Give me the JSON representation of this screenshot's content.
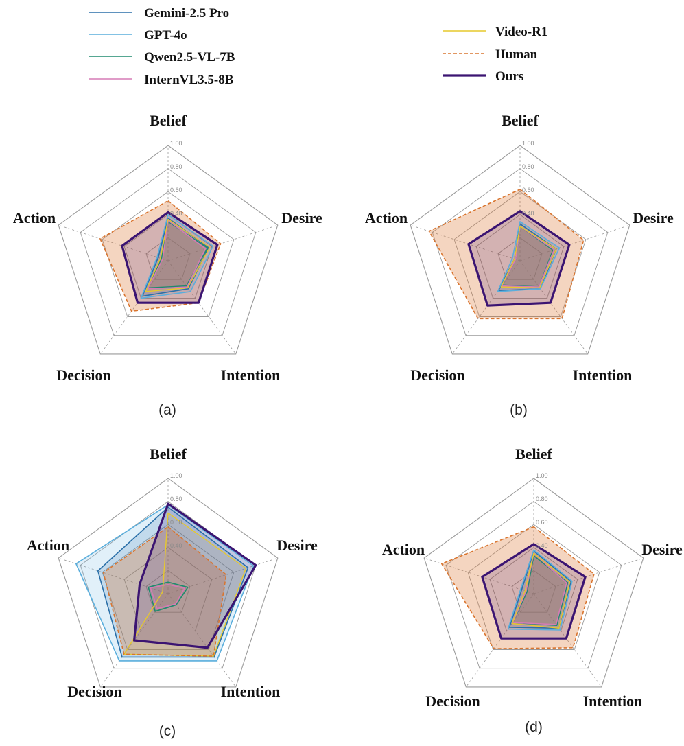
{
  "chart_data": {
    "type": "radar",
    "axes": [
      "Belief",
      "Desire",
      "Intention",
      "Decision",
      "Action"
    ],
    "ticks": [
      "0.40",
      "0.60",
      "0.80",
      "1.00"
    ],
    "rlim": [
      0,
      1
    ],
    "series_styles": [
      {
        "name": "Gemini-2.5 Pro",
        "color": "#2a6fa8",
        "dash": "solid",
        "width": 1.6,
        "fill_opacity": 0.18
      },
      {
        "name": "GPT-4o",
        "color": "#5aaedc",
        "dash": "solid",
        "width": 1.6,
        "fill_opacity": 0.18
      },
      {
        "name": "Qwen2.5-VL-7B",
        "color": "#1e8a6e",
        "dash": "solid",
        "width": 1.6,
        "fill_opacity": 0.18
      },
      {
        "name": "InternVL3.5-8B",
        "color": "#d67bb5",
        "dash": "solid",
        "width": 1.6,
        "fill_opacity": 0.18
      },
      {
        "name": "Video-R1",
        "color": "#e6c82c",
        "dash": "solid",
        "width": 1.4,
        "fill_opacity": 0.12
      },
      {
        "name": "Human",
        "color": "#d9752f",
        "dash": "dashed",
        "width": 1.6,
        "fill_opacity": 0.3
      },
      {
        "name": "Ours",
        "color": "#3b1472",
        "dash": "solid",
        "width": 3.2,
        "fill_opacity": 0.18
      }
    ],
    "panels": [
      {
        "label": "(a)",
        "series": [
          {
            "name": "Gemini-2.5 Pro",
            "values": [
              0.37,
              0.37,
              0.3,
              0.38,
              0.09
            ]
          },
          {
            "name": "GPT-4o",
            "values": [
              0.4,
              0.41,
              0.33,
              0.4,
              0.1
            ]
          },
          {
            "name": "Qwen2.5-VL-7B",
            "values": [
              0.34,
              0.36,
              0.27,
              0.29,
              0.06
            ]
          },
          {
            "name": "InternVL3.5-8B",
            "values": [
              0.35,
              0.34,
              0.28,
              0.3,
              0.05
            ]
          },
          {
            "name": "Video-R1",
            "values": [
              0.36,
              0.38,
              0.29,
              0.33,
              0.07
            ]
          },
          {
            "name": "Human",
            "values": [
              0.52,
              0.48,
              0.45,
              0.54,
              0.62
            ]
          },
          {
            "name": "Ours",
            "values": [
              0.42,
              0.45,
              0.45,
              0.45,
              0.42
            ]
          }
        ]
      },
      {
        "label": "(b)",
        "series": [
          {
            "name": "Gemini-2.5 Pro",
            "values": [
              0.32,
              0.33,
              0.3,
              0.32,
              0.05
            ]
          },
          {
            "name": "GPT-4o",
            "values": [
              0.34,
              0.36,
              0.3,
              0.33,
              0.07
            ]
          },
          {
            "name": "Qwen2.5-VL-7B",
            "values": [
              0.3,
              0.3,
              0.28,
              0.26,
              0.04
            ]
          },
          {
            "name": "InternVL3.5-8B",
            "values": [
              0.3,
              0.31,
              0.28,
              0.27,
              0.04
            ]
          },
          {
            "name": "Video-R1",
            "values": [
              0.3,
              0.33,
              0.29,
              0.28,
              0.05
            ]
          },
          {
            "name": "Human",
            "values": [
              0.62,
              0.58,
              0.62,
              0.62,
              0.83
            ]
          },
          {
            "name": "Ours",
            "values": [
              0.43,
              0.45,
              0.45,
              0.48,
              0.47
            ]
          }
        ]
      },
      {
        "label": "(c)",
        "series": [
          {
            "name": "Gemini-2.5 Pro",
            "values": [
              0.75,
              0.73,
              0.68,
              0.68,
              0.64
            ]
          },
          {
            "name": "GPT-4o",
            "values": [
              0.77,
              0.78,
              0.72,
              0.72,
              0.84
            ]
          },
          {
            "name": "Qwen2.5-VL-7B",
            "values": [
              0.1,
              0.18,
              0.12,
              0.19,
              0.18
            ]
          },
          {
            "name": "InternVL3.5-8B",
            "values": [
              0.08,
              0.15,
              0.11,
              0.16,
              0.16
            ]
          },
          {
            "name": "Video-R1",
            "values": [
              0.7,
              0.71,
              0.67,
              0.65,
              0.05
            ]
          },
          {
            "name": "Human",
            "values": [
              0.58,
              0.53,
              0.67,
              0.65,
              0.59
            ]
          },
          {
            "name": "Ours",
            "values": [
              0.78,
              0.8,
              0.58,
              0.5,
              0.26
            ]
          }
        ]
      },
      {
        "label": "(d)",
        "series": [
          {
            "name": "Gemini-2.5 Pro",
            "values": [
              0.37,
              0.34,
              0.37,
              0.36,
              0.11
            ]
          },
          {
            "name": "GPT-4o",
            "values": [
              0.38,
              0.35,
              0.39,
              0.38,
              0.12
            ]
          },
          {
            "name": "Qwen2.5-VL-7B",
            "values": [
              0.33,
              0.31,
              0.34,
              0.31,
              0.06
            ]
          },
          {
            "name": "InternVL3.5-8B",
            "values": [
              0.35,
              0.3,
              0.33,
              0.31,
              0.07
            ]
          },
          {
            "name": "Video-R1",
            "values": [
              0.35,
              0.33,
              0.37,
              0.32,
              0.08
            ]
          },
          {
            "name": "Human",
            "values": [
              0.58,
              0.55,
              0.58,
              0.59,
              0.84
            ]
          },
          {
            "name": "Ours",
            "values": [
              0.43,
              0.47,
              0.48,
              0.48,
              0.47
            ]
          }
        ]
      }
    ]
  }
}
